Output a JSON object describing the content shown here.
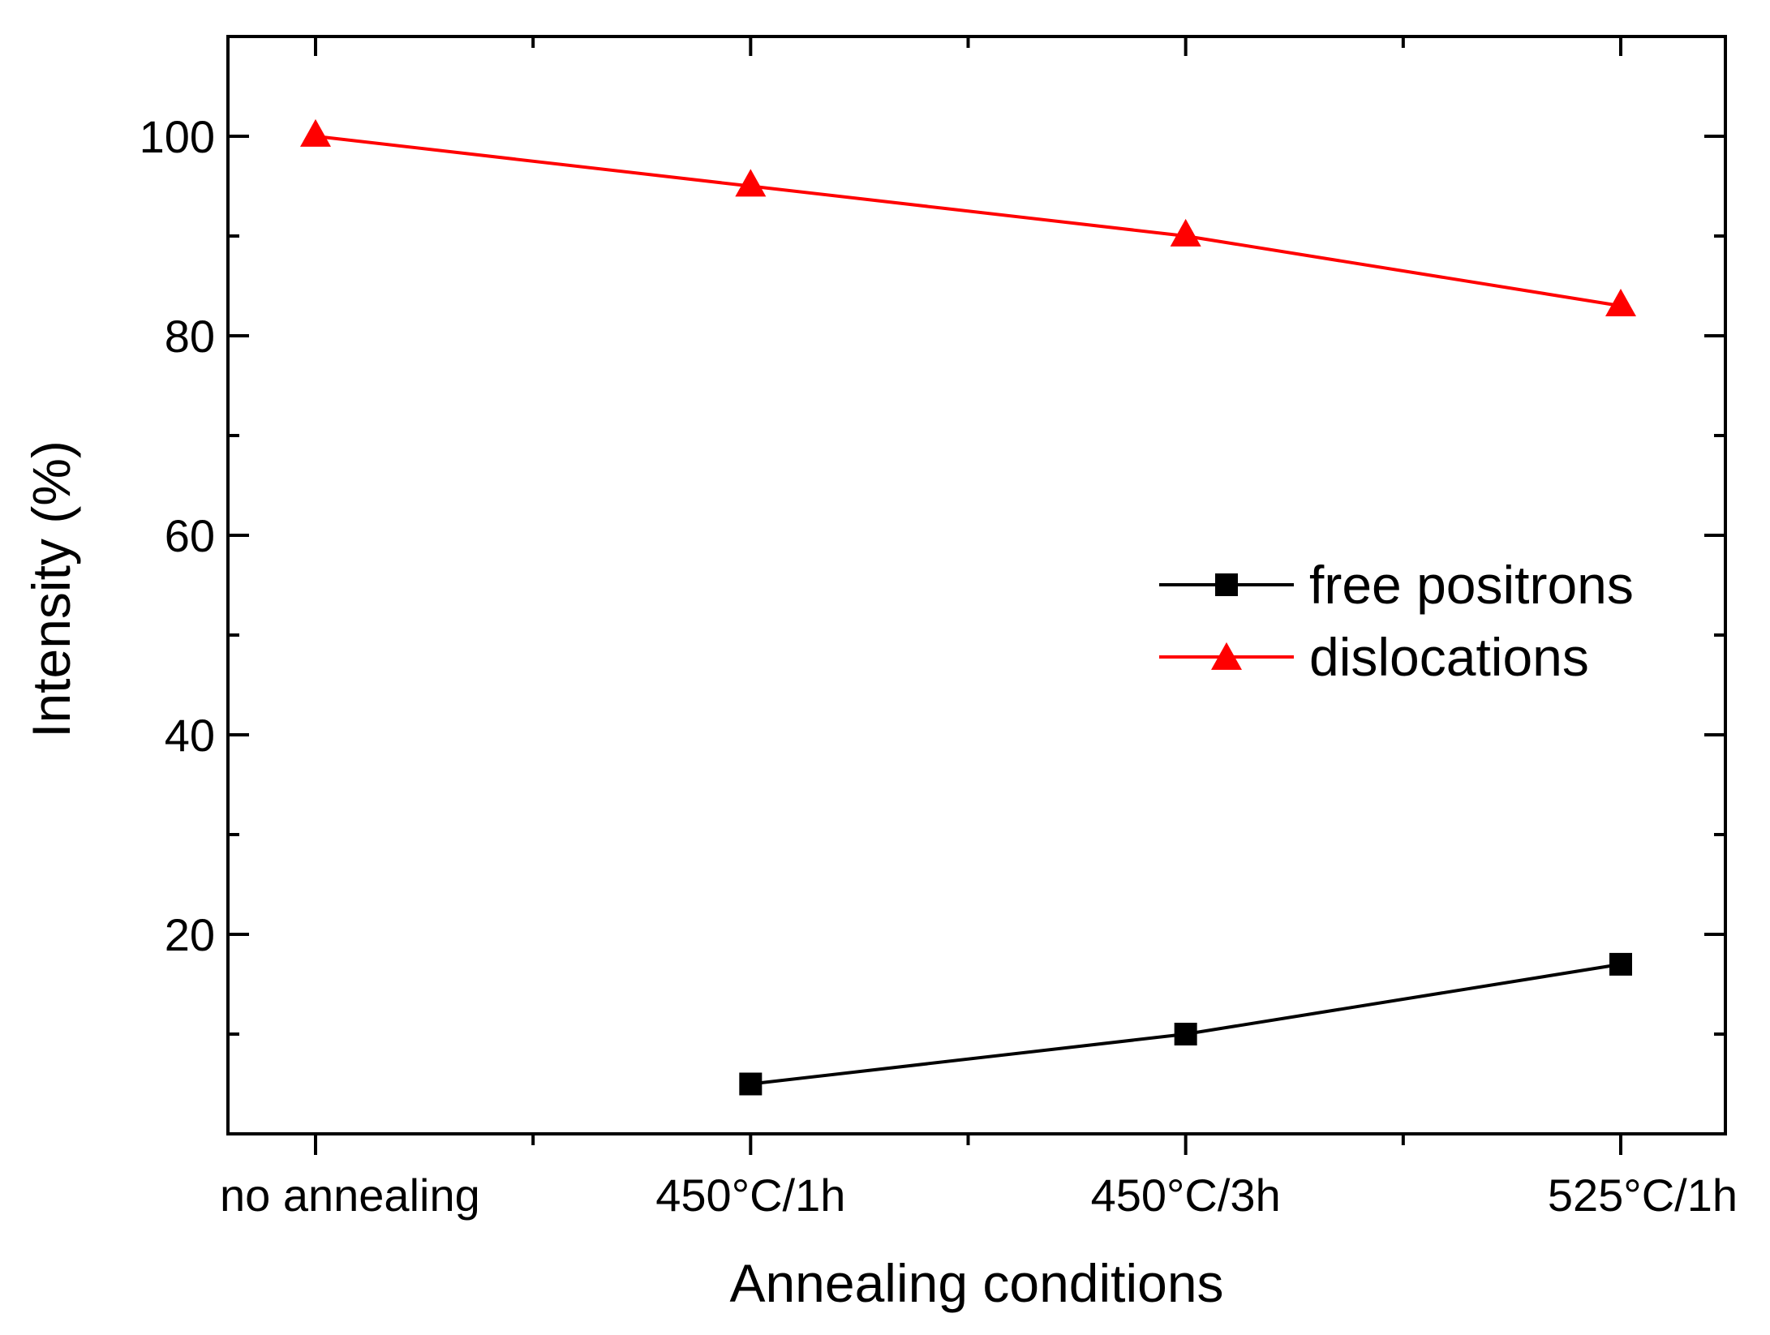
{
  "chart_data": {
    "type": "line",
    "title": "",
    "xlabel": "Annealing conditions",
    "ylabel": "Intensity (%)",
    "categories": [
      "no annealing",
      "450°C/1h",
      "450°C/3h",
      "525°C/1h"
    ],
    "ylim": [
      0,
      110
    ],
    "yticks": [
      20,
      40,
      60,
      80,
      100
    ],
    "yticks_minor": [
      10,
      30,
      50,
      70,
      90
    ],
    "grid": false,
    "legend_position": "right-middle",
    "series": [
      {
        "name": "free positrons",
        "color": "#000000",
        "marker": "square",
        "values": [
          null,
          5,
          10,
          17
        ]
      },
      {
        "name": "dislocations",
        "color": "#ff0000",
        "marker": "triangle",
        "values": [
          100,
          95,
          90,
          83
        ]
      }
    ]
  }
}
